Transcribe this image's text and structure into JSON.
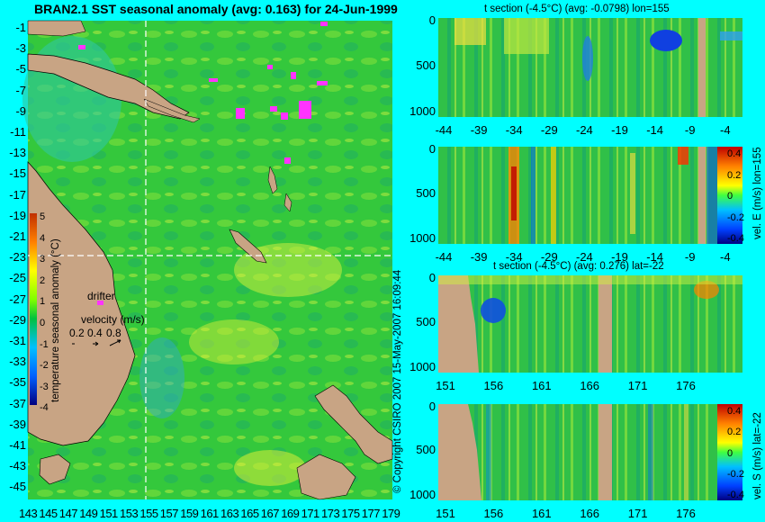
{
  "main_map": {
    "title": "BRAN2.1 SST seasonal anomaly (avg: 0.163) for 24-Jun-1999",
    "y_ticks": [
      "-1",
      "-3",
      "-5",
      "-7",
      "-9",
      "-11",
      "-13",
      "-15",
      "-17",
      "-19",
      "-21",
      "-23",
      "-25",
      "-27",
      "-29",
      "-31",
      "-33",
      "-35",
      "-37",
      "-39",
      "-41",
      "-43",
      "-45"
    ],
    "x_ticks": [
      "143",
      "145",
      "147",
      "149",
      "151",
      "153",
      "155",
      "157",
      "159",
      "161",
      "163",
      "165",
      "167",
      "169",
      "171",
      "173",
      "175",
      "177",
      "179"
    ],
    "colorbar": {
      "label": "temperature seasonal anomaly (°C)",
      "ticks": [
        "5",
        "4",
        "3",
        "2",
        "1",
        "0",
        "-1",
        "-2",
        "-3",
        "-4"
      ]
    },
    "drifter_label": "drifter",
    "velocity_label": "velocity (m/s)",
    "velocity_scale": [
      "0.2",
      "0.4",
      "0.8"
    ],
    "crosshair": {
      "lon": 155,
      "lat": -22
    }
  },
  "copyright": "© Copyright CSIRO 2007  15-May-2007 16:09:44",
  "panels": [
    {
      "title": "t section (-4.5°C) (avg: -0.0798) lon=155",
      "y_ticks": [
        "0",
        "500",
        "1000"
      ],
      "x_ticks": [
        "-44",
        "-39",
        "-34",
        "-29",
        "-24",
        "-19",
        "-14",
        "-9",
        "-4"
      ],
      "side_label": ""
    },
    {
      "title": "",
      "y_ticks": [
        "0",
        "500",
        "1000"
      ],
      "x_ticks": [
        "-44",
        "-39",
        "-34",
        "-29",
        "-24",
        "-19",
        "-14",
        "-9",
        "-4"
      ],
      "side_label": "vel. E (m/s) lon=155",
      "colorbar_ticks": [
        "0.4",
        "0.2",
        "0",
        "-0.2",
        "-0.4"
      ]
    },
    {
      "title": "t section (-4.5°C) (avg: 0.276) lat=-22",
      "y_ticks": [
        "0",
        "500",
        "1000"
      ],
      "x_ticks": [
        "151",
        "156",
        "161",
        "166",
        "171",
        "176"
      ],
      "side_label": ""
    },
    {
      "title": "",
      "y_ticks": [
        "0",
        "500",
        "1000"
      ],
      "x_ticks": [
        "151",
        "156",
        "161",
        "166",
        "171",
        "176"
      ],
      "side_label": "vel. S (m/s) lat=-22",
      "colorbar_ticks": [
        "0.4",
        "0.2",
        "0",
        "-0.2",
        "-0.4"
      ]
    }
  ],
  "colors": {
    "background": "#00ffff",
    "ocean": "#2ecc40",
    "land": "#c8a484",
    "drifter": "#ff33ff",
    "crosshair": "#ffffff"
  }
}
